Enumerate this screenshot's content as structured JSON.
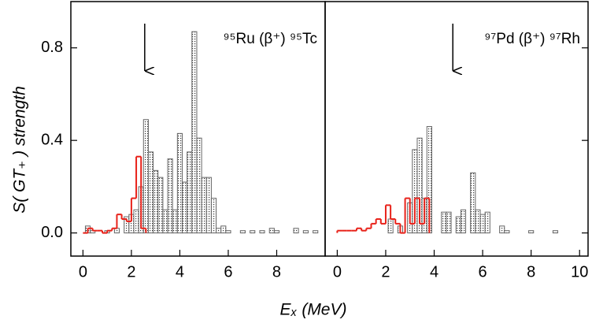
{
  "chart_data": {
    "type": "histogram",
    "ylabel": "S( GT₊ )  strength",
    "xlabel": "Eₓ (MeV)",
    "ylim": [
      -0.1,
      1.0
    ],
    "yticks": [
      {
        "value": 0,
        "label": "0.0"
      },
      0.4,
      0.8
    ],
    "panels": [
      {
        "label": "⁹⁵Ru (β⁺) ⁹⁵Tc",
        "xlim": [
          -0.5,
          10.0
        ],
        "xticks": [
          0,
          2,
          4,
          6,
          8
        ],
        "arrow_x": 2.55,
        "series": [
          {
            "style": "bars",
            "color": "#666666",
            "x": [
              0.2,
              0.4,
              1.0,
              1.4,
              1.8,
              2.0,
              2.2,
              2.4,
              2.6,
              2.8,
              3.0,
              3.2,
              3.4,
              3.6,
              3.8,
              4.0,
              4.2,
              4.4,
              4.6,
              4.8,
              5.0,
              5.2,
              5.4,
              5.6,
              5.8,
              6.0,
              6.6,
              7.0,
              7.4,
              7.8,
              8.0,
              8.8,
              9.2,
              9.6
            ],
            "values": [
              0.03,
              0.01,
              0.01,
              0.02,
              0.07,
              0.08,
              0.1,
              0.2,
              0.49,
              0.35,
              0.27,
              0.24,
              0.1,
              0.32,
              0.1,
              0.43,
              0.22,
              0.35,
              0.87,
              0.41,
              0.24,
              0.24,
              0.15,
              0.02,
              0.03,
              0.01,
              0.01,
              0.01,
              0.01,
              0.02,
              0.01,
              0.02,
              0.01,
              0.01
            ]
          },
          {
            "style": "step",
            "color": "#e8221a",
            "bins": [
              0,
              0.2,
              0.4,
              0.6,
              0.8,
              1.0,
              1.2,
              1.4,
              1.6,
              1.8,
              2.0,
              2.2,
              2.4,
              2.6
            ],
            "values": [
              0,
              0.02,
              0.01,
              0.01,
              0.0,
              0.01,
              0.02,
              0.08,
              0.06,
              0.05,
              0.15,
              0.33,
              0.02
            ]
          }
        ]
      },
      {
        "label": "⁹⁷Pd (β⁺) ⁹⁷Rh",
        "xlim": [
          -0.5,
          10.35
        ],
        "xticks": [
          0,
          2,
          4,
          6,
          8,
          10
        ],
        "arrow_x": 4.77,
        "series": [
          {
            "style": "bars",
            "color": "#666666",
            "x": [
              2.2,
              2.6,
              3.0,
              3.2,
              3.4,
              3.6,
              3.8,
              4.4,
              4.6,
              5.0,
              5.2,
              5.6,
              5.8,
              6.0,
              6.2,
              6.8,
              7.0,
              8.0,
              9.0
            ],
            "values": [
              0.06,
              0.03,
              0.13,
              0.36,
              0.41,
              0.15,
              0.46,
              0.09,
              0.09,
              0.07,
              0.1,
              0.26,
              0.1,
              0.08,
              0.09,
              0.03,
              0.01,
              0.01,
              0.01
            ]
          },
          {
            "style": "step",
            "color": "#e8221a",
            "bins": [
              0,
              0.2,
              0.4,
              0.6,
              0.8,
              1.0,
              1.2,
              1.4,
              1.6,
              1.8,
              2.0,
              2.2,
              2.4,
              2.6,
              2.8,
              3.0,
              3.2,
              3.4,
              3.6,
              3.8
            ],
            "values": [
              0.01,
              0.01,
              0.01,
              0.01,
              0.02,
              0.01,
              0.02,
              0.04,
              0.06,
              0.04,
              0.12,
              0.06,
              0.04,
              0.0,
              0.15,
              0.04,
              0.15,
              0.04,
              0.15
            ]
          }
        ]
      }
    ]
  }
}
